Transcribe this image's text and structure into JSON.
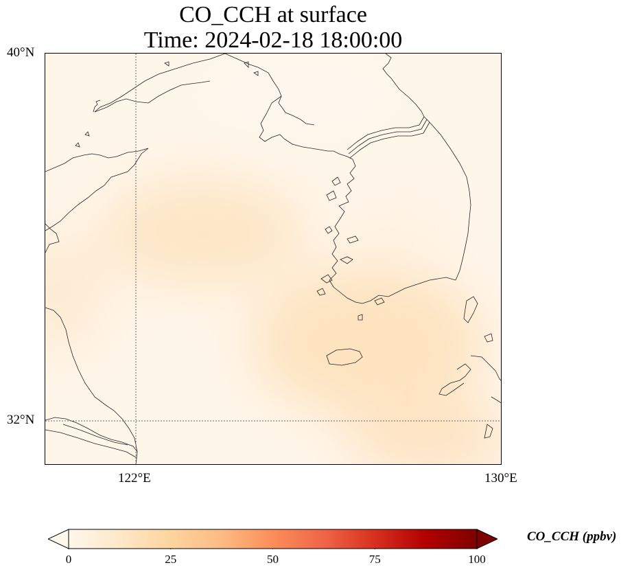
{
  "title": {
    "line1": "CO_CCH at surface",
    "line2": "Time: 2024-02-18 18:00:00"
  },
  "axes": {
    "lat_labels": [
      "40°N",
      "32°N"
    ],
    "lon_labels": [
      "122°E",
      "130°E"
    ]
  },
  "colorbar": {
    "label": "CO_CCH (ppbv)",
    "ticks": [
      "0",
      "25",
      "50",
      "75",
      "100"
    ],
    "min": 0,
    "max": 100,
    "extend": "both",
    "colormap": "OrRd",
    "stops": [
      "#fff7ec",
      "#fee8c8",
      "#fdd49e",
      "#fdbb84",
      "#fc8d59",
      "#ef6548",
      "#d7301f",
      "#b30000",
      "#7f0000"
    ]
  },
  "map": {
    "extent": {
      "lon_min": 120,
      "lon_max": 130,
      "lat_min": 31,
      "lat_max": 40
    },
    "gridlines": {
      "lons": [
        122
      ],
      "lats": [
        32
      ],
      "style": "dotted"
    },
    "field_color_range": [
      "#fff6ea",
      "#fde3c2"
    ]
  }
}
